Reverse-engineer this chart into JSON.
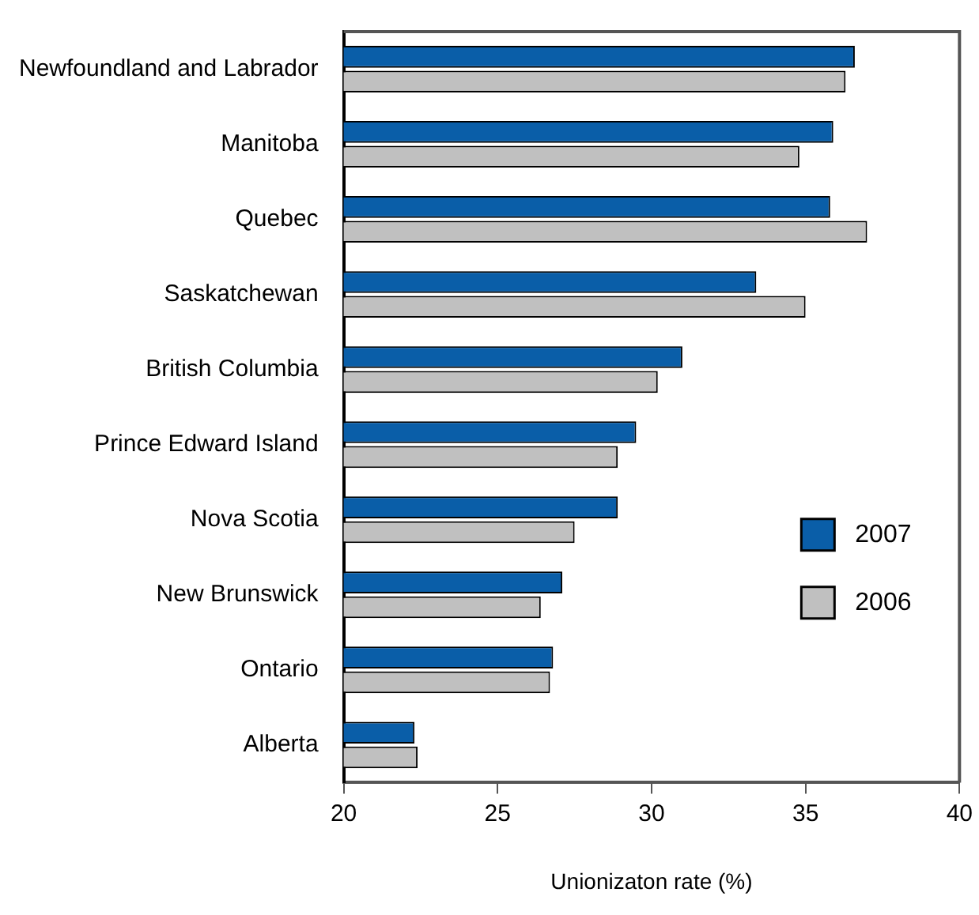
{
  "chart_data": {
    "type": "bar",
    "orientation": "horizontal",
    "xlabel": "Unionizaton rate (%)",
    "categories": [
      "Newfoundland and Labrador",
      "Manitoba",
      "Quebec",
      "Saskatchewan",
      "British Columbia",
      "Prince Edward Island",
      "Nova Scotia",
      "New Brunswick",
      "Ontario",
      "Alberta"
    ],
    "series": [
      {
        "name": "2007",
        "color": "#0a5ea8",
        "values": [
          36.6,
          35.9,
          35.8,
          33.4,
          31.0,
          29.5,
          28.9,
          27.1,
          26.8,
          22.3
        ]
      },
      {
        "name": "2006",
        "color": "#c0c0c0",
        "values": [
          36.3,
          34.8,
          37.0,
          35.0,
          30.2,
          28.9,
          27.5,
          26.4,
          26.7,
          22.4
        ]
      }
    ],
    "xlim": [
      20,
      40
    ],
    "xticks": [
      20,
      25,
      30,
      35,
      40
    ],
    "grid": false,
    "legend": "right"
  }
}
